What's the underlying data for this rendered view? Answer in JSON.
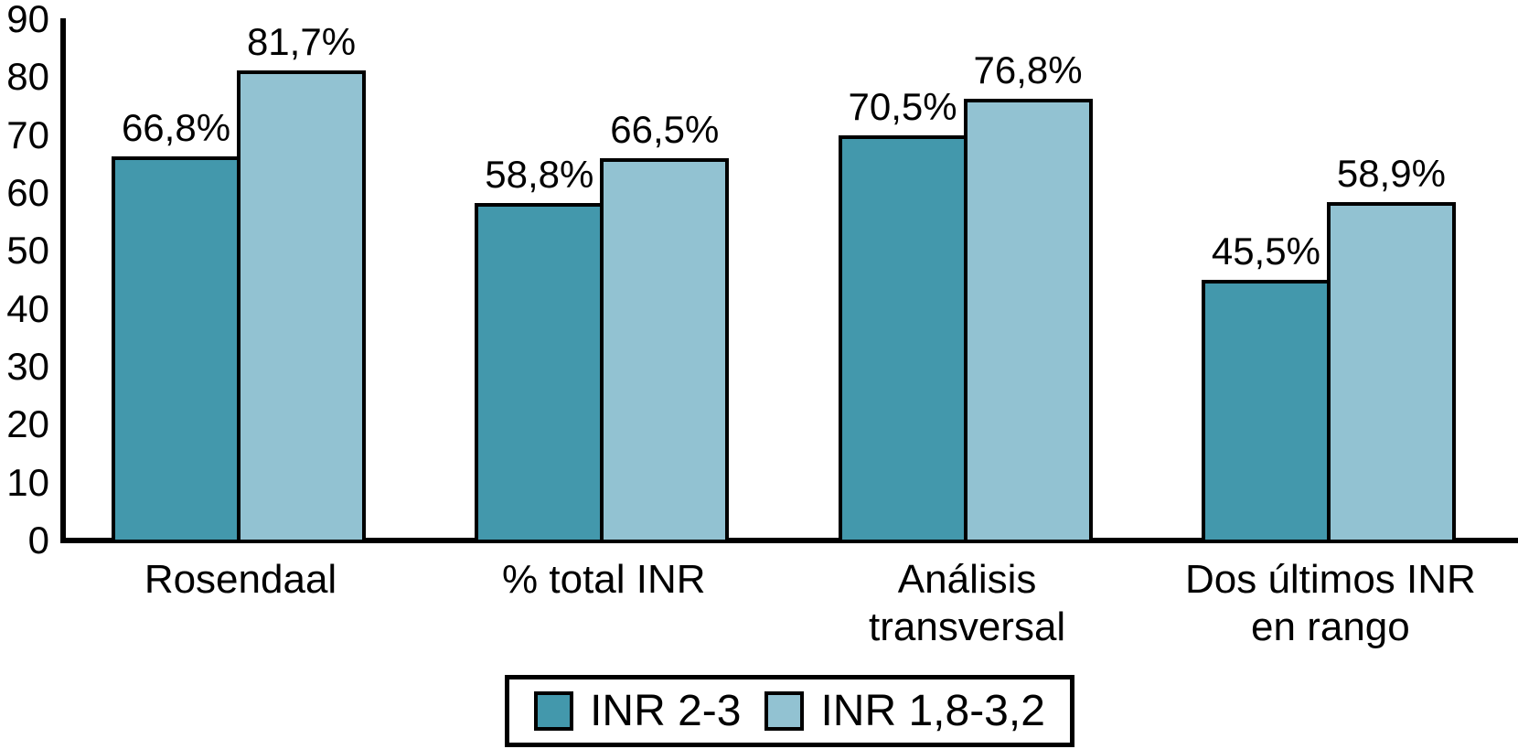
{
  "chart_data": {
    "type": "bar",
    "title": "",
    "xlabel": "",
    "ylabel": "",
    "categories": [
      "Rosendaal",
      "% total INR",
      "Análisis\ntransversal",
      "Dos últimos INR\nen rango"
    ],
    "series": [
      {
        "name": "INR 2-3",
        "color": "#4398AC",
        "values": [
          66.8,
          58.8,
          70.5,
          45.5
        ],
        "data_labels": [
          "66,8%",
          "58,8%",
          "70,5%",
          "45,5%"
        ]
      },
      {
        "name": "INR 1,8-3,2",
        "color": "#92C2D2",
        "values": [
          81.7,
          66.5,
          76.8,
          58.9
        ],
        "data_labels": [
          "81,7%",
          "66,5%",
          "76,8%",
          "58,9%"
        ]
      }
    ],
    "ylim": [
      0,
      90
    ],
    "y_ticks": [
      "0",
      "10",
      "20",
      "30",
      "40",
      "50",
      "60",
      "70",
      "80",
      "90"
    ],
    "grid": false,
    "legend_position": "bottom",
    "bar_outline_color": "#000000",
    "axis_color": "#000000",
    "text_color": "#000000",
    "background_color": "#FFFFFF"
  }
}
